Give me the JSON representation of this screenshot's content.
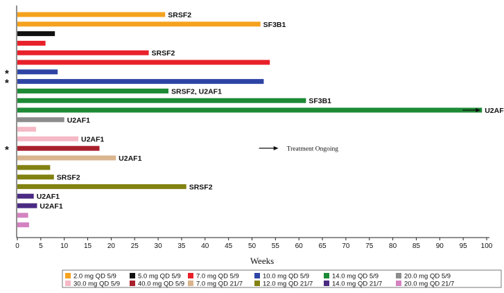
{
  "chart_data": {
    "type": "bar",
    "orientation": "horizontal",
    "xlabel": "Weeks",
    "xlim": [
      0,
      100
    ],
    "xticks": [
      0,
      5,
      10,
      15,
      20,
      25,
      30,
      35,
      40,
      45,
      50,
      55,
      60,
      65,
      70,
      75,
      80,
      85,
      90,
      95,
      100
    ],
    "grid": false,
    "legend_position": "bottom",
    "colors": {
      "2.0 mg QD 5/9": "#f5a21e",
      "5.0 mg QD 5/9": "#111111",
      "7.0 mg QD 5/9": "#e8202a",
      "10.0 mg QD 5/9": "#2e44a5",
      "14.0 mg QD 5/9": "#1d8a35",
      "20.0 mg QD 5/9": "#8c8c8c",
      "30.0 mg QD 5/9": "#f5b9c5",
      "40.0 mg QD 5/9": "#a8202c",
      "7.0 mg QD 21/7": "#d9b48e",
      "12.0 mg QD 21/7": "#828212",
      "14.0 mg QD 21/7": "#4a2a82",
      "20.0 mg QD 21/7": "#d482c0"
    },
    "legend": [
      "2.0 mg QD 5/9",
      "5.0 mg QD 5/9",
      "7.0 mg QD 5/9",
      "10.0 mg QD 5/9",
      "14.0 mg QD 5/9",
      "20.0 mg QD 5/9",
      "30.0 mg QD 5/9",
      "40.0 mg QD 5/9",
      "7.0 mg QD 21/7",
      "12.0 mg QD 21/7",
      "14.0 mg QD 21/7",
      "20.0 mg QD 21/7"
    ],
    "bars": [
      {
        "group": "2.0 mg QD 5/9",
        "value": 31.5,
        "label": "SRSF2"
      },
      {
        "group": "2.0 mg QD 5/9",
        "value": 51.8,
        "label": "SF3B1"
      },
      {
        "group": "5.0 mg QD 5/9",
        "value": 8.0,
        "label": ""
      },
      {
        "group": "7.0 mg QD 5/9",
        "value": 6.0,
        "label": ""
      },
      {
        "group": "7.0 mg QD 5/9",
        "value": 28.0,
        "label": "SRSF2"
      },
      {
        "group": "7.0 mg QD 5/9",
        "value": 53.8,
        "label": ""
      },
      {
        "group": "10.0 mg QD 5/9",
        "value": 8.6,
        "label": "",
        "star": true
      },
      {
        "group": "10.0 mg QD 5/9",
        "value": 52.5,
        "label": "",
        "star": true
      },
      {
        "group": "14.0 mg QD 5/9",
        "value": 32.2,
        "label": "SRSF2, U2AF1"
      },
      {
        "group": "14.0 mg QD 5/9",
        "value": 61.5,
        "label": "SF3B1"
      },
      {
        "group": "14.0 mg QD 5/9",
        "value": 99.0,
        "label": "U2AF1",
        "ongoing": true
      },
      {
        "group": "20.0 mg QD 5/9",
        "value": 10.0,
        "label": "U2AF1"
      },
      {
        "group": "30.0 mg QD 5/9",
        "value": 4.0,
        "label": ""
      },
      {
        "group": "30.0 mg QD 5/9",
        "value": 13.0,
        "label": "U2AF1"
      },
      {
        "group": "40.0 mg QD 5/9",
        "value": 17.5,
        "label": "",
        "star": true
      },
      {
        "group": "7.0 mg QD 21/7",
        "value": 21.0,
        "label": "U2AF1"
      },
      {
        "group": "12.0 mg QD 21/7",
        "value": 7.0,
        "label": ""
      },
      {
        "group": "12.0 mg QD 21/7",
        "value": 7.8,
        "label": "SRSF2"
      },
      {
        "group": "12.0 mg QD 21/7",
        "value": 36.0,
        "label": "SRSF2"
      },
      {
        "group": "14.0 mg QD 21/7",
        "value": 3.5,
        "label": "U2AF1"
      },
      {
        "group": "14.0 mg QD 21/7",
        "value": 4.2,
        "label": "U2AF1"
      },
      {
        "group": "20.0 mg QD 21/7",
        "value": 2.3,
        "label": ""
      },
      {
        "group": "20.0 mg QD 21/7",
        "value": 2.5,
        "label": ""
      }
    ],
    "annotations": [
      {
        "text": "Treatment Ongoing",
        "arrow": true,
        "x": 51.5
      }
    ]
  }
}
